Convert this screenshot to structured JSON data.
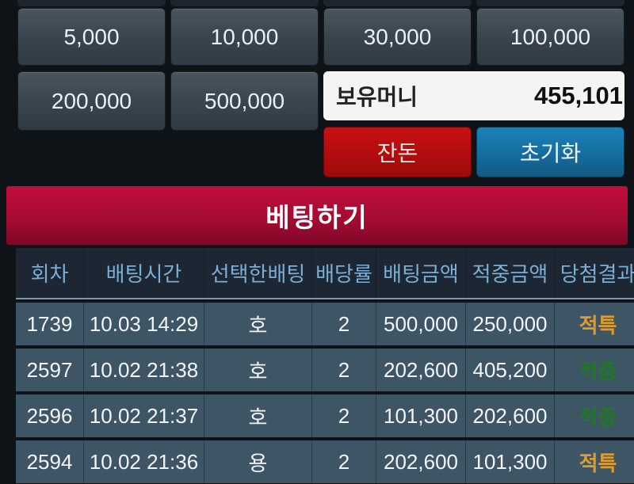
{
  "amounts": [
    "5,000",
    "10,000",
    "30,000",
    "100,000",
    "200,000",
    "500,000"
  ],
  "wallet": {
    "label": "보유머니",
    "value": "455,101"
  },
  "actions": {
    "change": "잔돈",
    "reset": "초기화",
    "bet": "베팅하기"
  },
  "table": {
    "headers": [
      "회차",
      "배팅시간",
      "선택한배팅",
      "배당률",
      "배팅금액",
      "적중금액",
      "당첨결과"
    ],
    "rows": [
      {
        "round": "1739",
        "time": "10.03 14:29",
        "pick": "호",
        "odds": "2",
        "bet": "500,000",
        "win": "250,000",
        "result": "적특",
        "result_variant": "special"
      },
      {
        "round": "2597",
        "time": "10.02 21:38",
        "pick": "호",
        "odds": "2",
        "bet": "202,600",
        "win": "405,200",
        "result": "적중",
        "result_variant": "hit"
      },
      {
        "round": "2596",
        "time": "10.02 21:37",
        "pick": "호",
        "odds": "2",
        "bet": "101,300",
        "win": "202,600",
        "result": "적중",
        "result_variant": "hit"
      },
      {
        "round": "2594",
        "time": "10.02 21:36",
        "pick": "용",
        "odds": "2",
        "bet": "202,600",
        "win": "101,300",
        "result": "적특",
        "result_variant": "special"
      }
    ]
  },
  "colors": {
    "gold": "#dd9c33",
    "green": "#1e7a1f",
    "button_red": "#c81012",
    "button_blue": "#1b82ba",
    "header_text": "#7aaed6",
    "row_bg": "#3e5565"
  }
}
